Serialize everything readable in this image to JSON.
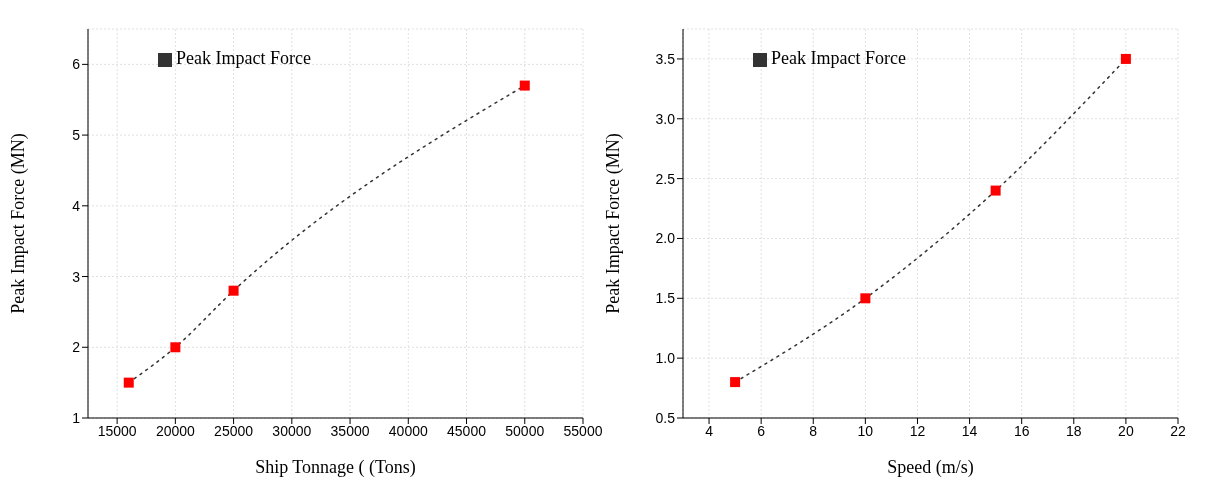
{
  "chart_data": [
    {
      "type": "line",
      "xlabel": "Ship Tonnage ( (Tons)",
      "ylabel": "Peak Impact Force (MN)",
      "x": [
        16000,
        20000,
        25000,
        50000
      ],
      "series": [
        {
          "name": "Peak Impact Force",
          "color": "#ff0000",
          "values": [
            1.5,
            2,
            2.8,
            5.7
          ]
        }
      ],
      "xlim": [
        12500,
        55000
      ],
      "xticks": [
        15000,
        20000,
        25000,
        30000,
        35000,
        40000,
        45000,
        50000,
        55000
      ],
      "ylim": [
        1,
        6.5
      ],
      "yticks": [
        1,
        2,
        3,
        4,
        5,
        6
      ],
      "grid": true,
      "legend": "top left",
      "marker": "square",
      "line_style": "dotted"
    },
    {
      "type": "line",
      "xlabel": "Speed (m/s)",
      "ylabel": "Peak Impact Force (MN)",
      "x": [
        5,
        10,
        15,
        20
      ],
      "series": [
        {
          "name": "Peak Impact Force",
          "color": "#ff0000",
          "values": [
            0.8,
            1.5,
            2.4,
            3.5
          ]
        }
      ],
      "xlim": [
        3,
        22
      ],
      "xticks": [
        4,
        6,
        8,
        10,
        12,
        14,
        16,
        18,
        20,
        22
      ],
      "ylim": [
        0.5,
        3.75
      ],
      "yticks": [
        {
          "value": 0.5,
          "label": "0.5"
        },
        {
          "value": 1,
          "label": "1.0"
        },
        1.5,
        {
          "value": 2,
          "label": "2.0"
        },
        2.5,
        {
          "value": 3,
          "label": "3.0"
        },
        3.5
      ],
      "grid": true,
      "legend": "top left",
      "marker": "square",
      "line_style": "dotted"
    }
  ]
}
